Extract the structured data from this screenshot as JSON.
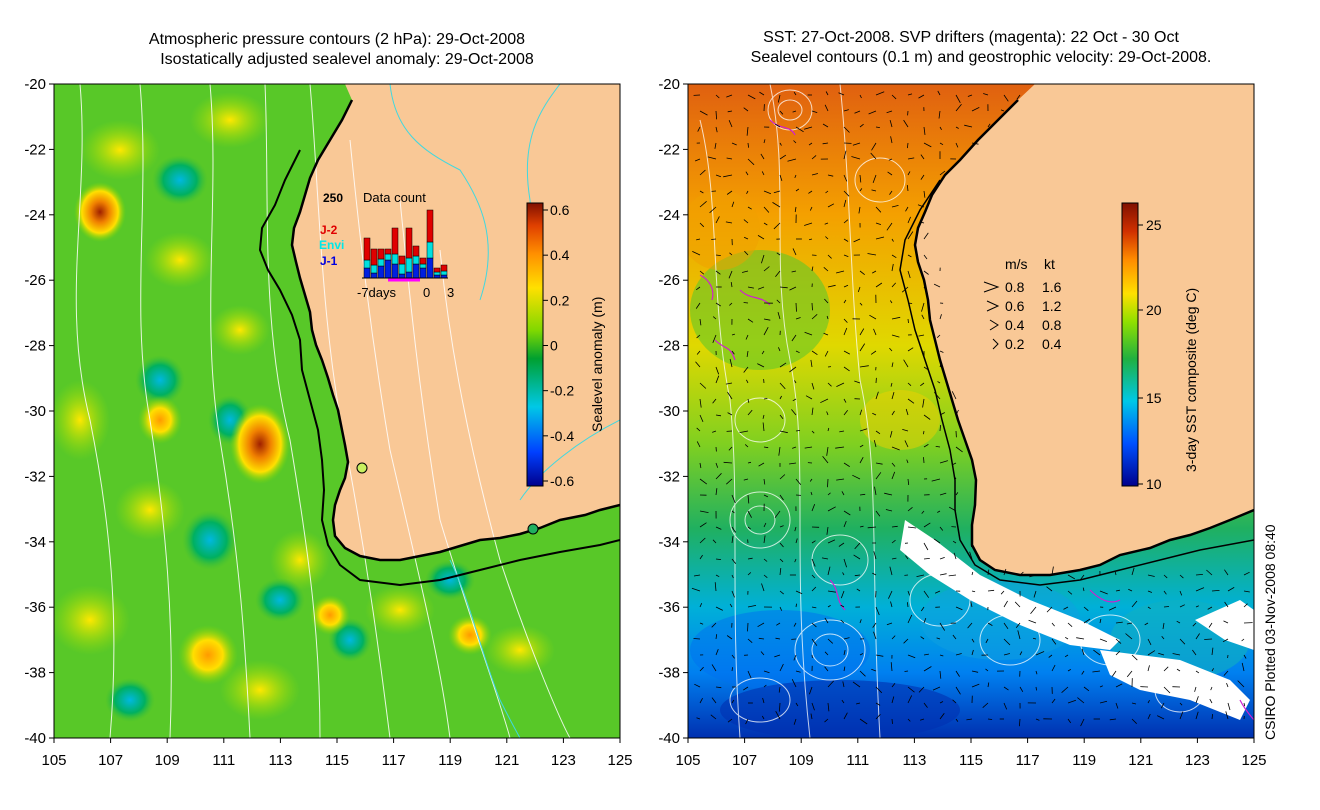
{
  "left_panel": {
    "title_line1": "Atmospheric pressure contours (2 hPa): 29-Oct-2008",
    "title_line2": "Isostatically adjusted sealevel anomaly: 29-Oct-2008",
    "colorbar_label": "Sealevel anomaly (m)",
    "colorbar_ticks": [
      "0.6",
      "0.4",
      "0.2",
      "0",
      "-0.2",
      "-0.4",
      "-0.6"
    ],
    "inset": {
      "count_label": "250",
      "title": "Data count",
      "legend": [
        "J-2",
        "Envi",
        "J-1"
      ],
      "xlabel": "-7days",
      "xtick_zero": "0",
      "xtick_three": "3"
    }
  },
  "right_panel": {
    "title_line1": "SST: 27-Oct-2008. SVP drifters (magenta): 22 Oct - 30 Oct",
    "title_line2": "Sealevel contours (0.1 m) and geostrophic velocity: 29-Oct-2008.",
    "colorbar_label": "3-day SST composite (deg C)",
    "colorbar_ticks": [
      "25",
      "20",
      "15",
      "10"
    ],
    "velocity_legend": {
      "header_ms": "m/s",
      "header_kt": "kt",
      "rows": [
        {
          "ms": "0.8",
          "kt": "1.6"
        },
        {
          "ms": "0.6",
          "kt": "1.2"
        },
        {
          "ms": "0.4",
          "kt": "0.8"
        },
        {
          "ms": "0.2",
          "kt": "0.4"
        }
      ]
    }
  },
  "axes": {
    "y_ticks": [
      "-20",
      "-22",
      "-24",
      "-26",
      "-28",
      "-30",
      "-32",
      "-34",
      "-36",
      "-38",
      "-40"
    ],
    "x_ticks": [
      "105",
      "107",
      "109",
      "111",
      "113",
      "115",
      "117",
      "119",
      "121",
      "123",
      "125"
    ]
  },
  "credit": "CSIRO Plotted 03-Nov-2008 08:40",
  "colors": {
    "land": "#f9c896",
    "sla_colormap": [
      "#00008c",
      "#0040ff",
      "#00c8e6",
      "#00a030",
      "#80d800",
      "#ffe000",
      "#ff9000",
      "#e04000",
      "#801000"
    ],
    "sst_colormap": [
      "#00008c",
      "#0050ff",
      "#00c8e6",
      "#20b040",
      "#90e000",
      "#ffe000",
      "#ff8c00",
      "#d03000",
      "#801000"
    ]
  }
}
